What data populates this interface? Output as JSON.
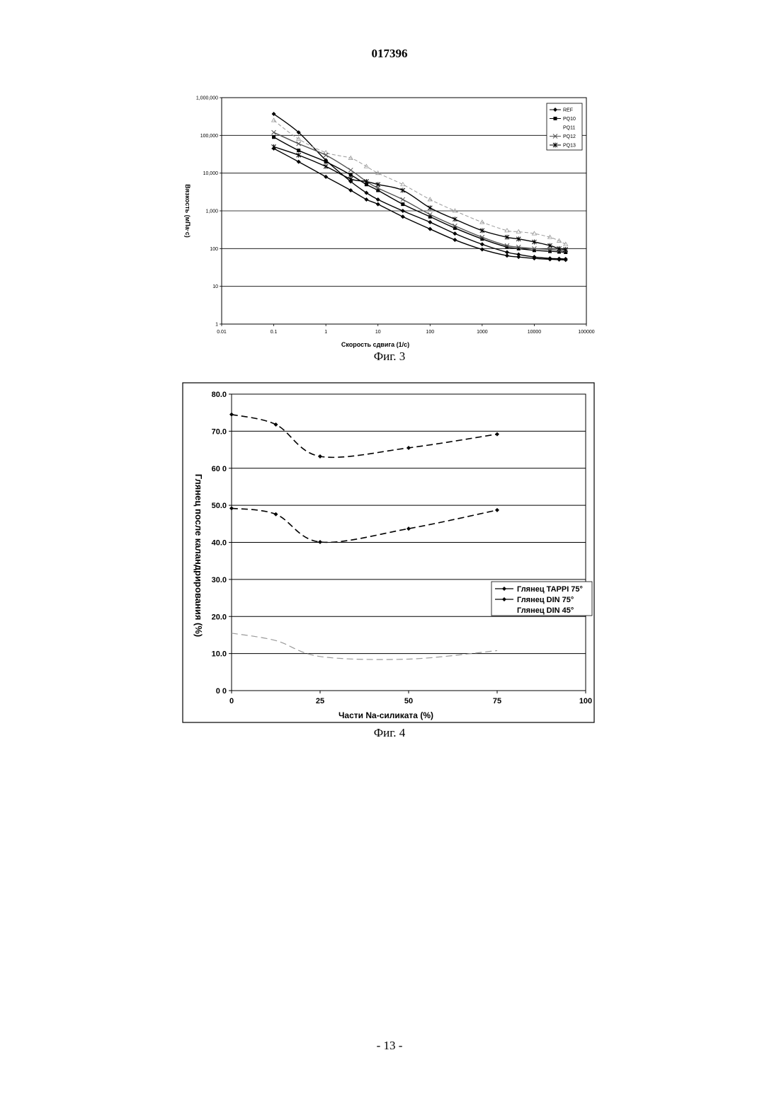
{
  "header": {
    "doc_number": "017396"
  },
  "footer": {
    "page_number": "- 13 -"
  },
  "captions": {
    "fig3": "Фиг. 3",
    "fig4": "Фиг. 4"
  },
  "chart_data": [
    {
      "type": "line",
      "xscale": "log",
      "yscale": "log",
      "xlabel": "Скорость сдвига (1/с)",
      "ylabel": "Вязкость (мПа·с)",
      "xlim": [
        0.01,
        100000
      ],
      "ylim": [
        1,
        1000000
      ],
      "x_ticks": [
        "0.01",
        "0.1",
        "1",
        "10",
        "100",
        "1000",
        "10000",
        "100000"
      ],
      "y_ticks": [
        "1",
        "10",
        "100",
        "1,000",
        "10,000",
        "100,000",
        "1,000,000"
      ],
      "grid": "horizontal",
      "legend_position": "top-right",
      "x": [
        0.1,
        0.3,
        1,
        3,
        6,
        10,
        30,
        100,
        300,
        1000,
        3000,
        5000,
        10000,
        20000,
        30000,
        40000
      ],
      "series": [
        {
          "name": "REF",
          "color": "#000000",
          "values": [
            370000,
            120000,
            22000,
            6000,
            3000,
            2000,
            1000,
            500,
            250,
            130,
            80,
            70,
            60,
            55,
            54,
            53
          ]
        },
        {
          "name": "PQ10",
          "color": "#000000",
          "values": [
            90000,
            40000,
            20000,
            9000,
            5000,
            3500,
            1500,
            700,
            350,
            180,
            110,
            100,
            90,
            85,
            82,
            80
          ]
        },
        {
          "name": "PQ11",
          "color": "#9a9a9a",
          "values": [
            250000,
            80000,
            35000,
            25000,
            15000,
            10000,
            5000,
            2000,
            1000,
            500,
            300,
            280,
            250,
            200,
            160,
            130
          ]
        },
        {
          "name": "PQ12",
          "color": "#555555",
          "values": [
            120000,
            60000,
            30000,
            12000,
            6000,
            4000,
            2000,
            800,
            400,
            200,
            120,
            110,
            100,
            95,
            90,
            88
          ]
        },
        {
          "name": "PQ13",
          "color": "#000000",
          "values": [
            50000,
            30000,
            15000,
            7000,
            6000,
            5000,
            3500,
            1200,
            600,
            300,
            200,
            180,
            150,
            120,
            100,
            95
          ]
        },
        {
          "name": "",
          "color": "#000000",
          "values": [
            45000,
            20000,
            8000,
            3500,
            2000,
            1500,
            700,
            330,
            170,
            95,
            65,
            60,
            55,
            52,
            51,
            50
          ]
        }
      ]
    },
    {
      "type": "line",
      "xlabel": "Части Na-силиката (%)",
      "ylabel": "Глянец после каландрирования (%)",
      "xlim": [
        0,
        100
      ],
      "ylim": [
        0,
        80
      ],
      "x_ticks": [
        "0",
        "25",
        "50",
        "75",
        "100"
      ],
      "y_ticks": [
        "0 0",
        "10.0",
        "20.0",
        "30.0",
        "40.0",
        "50.0",
        "60 0",
        "70.0",
        "80.0"
      ],
      "grid": "horizontal",
      "legend_position": "right",
      "x": [
        0,
        12.5,
        25,
        50,
        75
      ],
      "series": [
        {
          "name": "Глянец TAPPI 75°",
          "color": "#000000",
          "values": [
            74.5,
            71.8,
            63.2,
            65.5,
            69.2
          ]
        },
        {
          "name": "Глянец DIN 75°",
          "color": "#000000",
          "values": [
            49.2,
            47.6,
            40.1,
            43.7,
            48.7
          ]
        },
        {
          "name": "Глянец DIN 45°",
          "color": "#9a9a9a",
          "values": [
            15.5,
            13.5,
            9.2,
            8.5,
            10.8
          ]
        }
      ]
    }
  ]
}
